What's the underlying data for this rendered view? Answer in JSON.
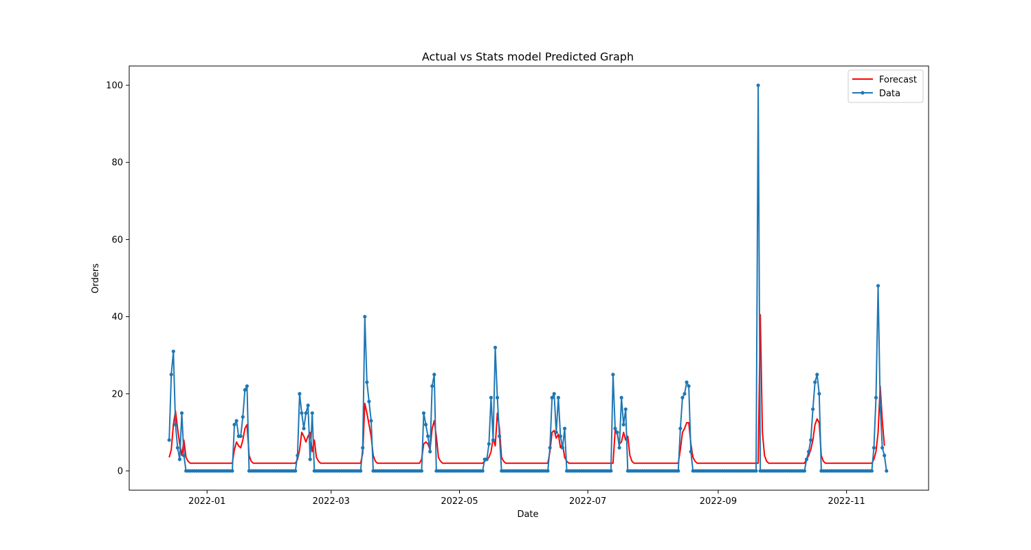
{
  "chart_data": {
    "type": "line",
    "title": "Actual vs Stats model Predicted Graph",
    "xlabel": "Date",
    "ylabel": "Orders",
    "xlim": [
      "2021-11-25",
      "2022-12-10"
    ],
    "ylim": [
      -5,
      105
    ],
    "x_ticks": [
      "2022-01-01",
      "2022-03-01",
      "2022-05-01",
      "2022-07-01",
      "2022-09-01",
      "2022-11-01"
    ],
    "x_tick_labels": [
      "2022-01",
      "2022-03",
      "2022-05",
      "2022-07",
      "2022-09",
      "2022-11"
    ],
    "y_ticks": [
      0,
      20,
      40,
      60,
      80,
      100
    ],
    "y_tick_labels": [
      "0",
      "20",
      "40",
      "60",
      "80",
      "100"
    ],
    "grid": false,
    "legend_position": "upper right",
    "legend": [
      "Forecast",
      "Data"
    ],
    "series": [
      {
        "name": "Forecast",
        "color": "#ff0000",
        "marker": "none",
        "points": [
          [
            "2021-12-14",
            3.5
          ],
          [
            "2021-12-15",
            5.5
          ],
          [
            "2021-12-16",
            12.0
          ],
          [
            "2021-12-17",
            15.5
          ],
          [
            "2021-12-18",
            11.0
          ],
          [
            "2021-12-19",
            7.0
          ],
          [
            "2021-12-20",
            4.0
          ],
          [
            "2021-12-21",
            8.0
          ],
          [
            "2021-12-22",
            3.5
          ],
          [
            "2021-12-23",
            2.5
          ],
          [
            "2021-12-24",
            2.0
          ],
          [
            "2022-01-13",
            2.0
          ],
          [
            "2022-01-14",
            5.5
          ],
          [
            "2022-01-15",
            7.5
          ],
          [
            "2022-01-16",
            6.5
          ],
          [
            "2022-01-17",
            6.0
          ],
          [
            "2022-01-18",
            8.0
          ],
          [
            "2022-01-19",
            11.0
          ],
          [
            "2022-01-20",
            12.0
          ],
          [
            "2022-01-21",
            4.0
          ],
          [
            "2022-01-22",
            2.5
          ],
          [
            "2022-01-23",
            2.0
          ],
          [
            "2022-02-12",
            2.0
          ],
          [
            "2022-02-13",
            3.0
          ],
          [
            "2022-02-14",
            5.5
          ],
          [
            "2022-02-15",
            10.0
          ],
          [
            "2022-02-16",
            9.0
          ],
          [
            "2022-02-17",
            7.5
          ],
          [
            "2022-02-18",
            9.0
          ],
          [
            "2022-02-19",
            10.0
          ],
          [
            "2022-02-20",
            5.0
          ],
          [
            "2022-02-21",
            8.0
          ],
          [
            "2022-02-22",
            3.5
          ],
          [
            "2022-02-23",
            2.5
          ],
          [
            "2022-02-24",
            2.0
          ],
          [
            "2022-03-15",
            2.0
          ],
          [
            "2022-03-16",
            4.5
          ],
          [
            "2022-03-17",
            17.5
          ],
          [
            "2022-03-18",
            15.0
          ],
          [
            "2022-03-19",
            12.0
          ],
          [
            "2022-03-20",
            9.0
          ],
          [
            "2022-03-21",
            4.0
          ],
          [
            "2022-03-22",
            2.5
          ],
          [
            "2022-03-23",
            2.0
          ],
          [
            "2022-04-12",
            2.0
          ],
          [
            "2022-04-13",
            3.0
          ],
          [
            "2022-04-14",
            7.0
          ],
          [
            "2022-04-15",
            7.5
          ],
          [
            "2022-04-16",
            7.0
          ],
          [
            "2022-04-17",
            5.5
          ],
          [
            "2022-04-18",
            11.0
          ],
          [
            "2022-04-19",
            13.0
          ],
          [
            "2022-04-20",
            9.0
          ],
          [
            "2022-04-21",
            3.5
          ],
          [
            "2022-04-22",
            2.5
          ],
          [
            "2022-04-23",
            2.0
          ],
          [
            "2022-05-12",
            2.0
          ],
          [
            "2022-05-13",
            2.5
          ],
          [
            "2022-05-14",
            3.0
          ],
          [
            "2022-05-15",
            3.5
          ],
          [
            "2022-05-16",
            5.0
          ],
          [
            "2022-05-17",
            8.5
          ],
          [
            "2022-05-18",
            6.5
          ],
          [
            "2022-05-19",
            15.0
          ],
          [
            "2022-05-20",
            11.0
          ],
          [
            "2022-05-21",
            3.5
          ],
          [
            "2022-05-22",
            2.5
          ],
          [
            "2022-05-23",
            2.0
          ],
          [
            "2022-06-12",
            2.0
          ],
          [
            "2022-06-13",
            5.0
          ],
          [
            "2022-06-14",
            10.0
          ],
          [
            "2022-06-15",
            10.5
          ],
          [
            "2022-06-16",
            8.5
          ],
          [
            "2022-06-17",
            9.5
          ],
          [
            "2022-06-18",
            6.0
          ],
          [
            "2022-06-19",
            7.0
          ],
          [
            "2022-06-20",
            3.5
          ],
          [
            "2022-06-21",
            2.5
          ],
          [
            "2022-06-22",
            2.0
          ],
          [
            "2022-07-13",
            2.0
          ],
          [
            "2022-07-14",
            10.5
          ],
          [
            "2022-07-15",
            9.5
          ],
          [
            "2022-07-16",
            7.0
          ],
          [
            "2022-07-17",
            7.5
          ],
          [
            "2022-07-18",
            10.0
          ],
          [
            "2022-07-19",
            8.0
          ],
          [
            "2022-07-20",
            9.0
          ],
          [
            "2022-07-21",
            4.0
          ],
          [
            "2022-07-22",
            2.5
          ],
          [
            "2022-07-23",
            2.0
          ],
          [
            "2022-08-13",
            2.0
          ],
          [
            "2022-08-14",
            5.5
          ],
          [
            "2022-08-15",
            10.0
          ],
          [
            "2022-08-16",
            11.0
          ],
          [
            "2022-08-17",
            12.5
          ],
          [
            "2022-08-18",
            12.5
          ],
          [
            "2022-08-19",
            7.0
          ],
          [
            "2022-08-20",
            3.5
          ],
          [
            "2022-08-21",
            2.5
          ],
          [
            "2022-08-22",
            2.0
          ],
          [
            "2022-09-20",
            2.0
          ],
          [
            "2022-09-21",
            40.5
          ],
          [
            "2022-09-22",
            10.0
          ],
          [
            "2022-09-23",
            4.0
          ],
          [
            "2022-09-24",
            2.5
          ],
          [
            "2022-09-25",
            2.0
          ],
          [
            "2022-10-12",
            2.0
          ],
          [
            "2022-10-13",
            3.0
          ],
          [
            "2022-10-14",
            4.0
          ],
          [
            "2022-10-15",
            5.5
          ],
          [
            "2022-10-16",
            8.0
          ],
          [
            "2022-10-17",
            12.0
          ],
          [
            "2022-10-18",
            13.5
          ],
          [
            "2022-10-19",
            12.5
          ],
          [
            "2022-10-20",
            4.0
          ],
          [
            "2022-10-21",
            2.5
          ],
          [
            "2022-10-22",
            2.0
          ],
          [
            "2022-11-13",
            2.0
          ],
          [
            "2022-11-14",
            3.0
          ],
          [
            "2022-11-15",
            5.0
          ],
          [
            "2022-11-16",
            10.0
          ],
          [
            "2022-11-17",
            22.0
          ],
          [
            "2022-11-18",
            13.0
          ],
          [
            "2022-11-19",
            6.5
          ]
        ]
      },
      {
        "name": "Data",
        "color": "#1f77b4",
        "marker": "circle",
        "baseline_zero_note": "All dates between the listed active-day points have value 0",
        "start": "2021-12-14",
        "end": "2022-11-20",
        "nonzero_points": [
          [
            "2021-12-14",
            8
          ],
          [
            "2021-12-15",
            25
          ],
          [
            "2021-12-16",
            31
          ],
          [
            "2021-12-17",
            12
          ],
          [
            "2021-12-18",
            6
          ],
          [
            "2021-12-19",
            3
          ],
          [
            "2021-12-20",
            15
          ],
          [
            "2021-12-21",
            4
          ],
          [
            "2022-01-14",
            12
          ],
          [
            "2022-01-15",
            13
          ],
          [
            "2022-01-16",
            9
          ],
          [
            "2022-01-17",
            9
          ],
          [
            "2022-01-18",
            14
          ],
          [
            "2022-01-19",
            21
          ],
          [
            "2022-01-20",
            22
          ],
          [
            "2022-02-13",
            4
          ],
          [
            "2022-02-14",
            20
          ],
          [
            "2022-02-15",
            15
          ],
          [
            "2022-02-16",
            11
          ],
          [
            "2022-02-17",
            15
          ],
          [
            "2022-02-18",
            17
          ],
          [
            "2022-02-19",
            3
          ],
          [
            "2022-02-20",
            15
          ],
          [
            "2022-03-16",
            6
          ],
          [
            "2022-03-17",
            40
          ],
          [
            "2022-03-18",
            23
          ],
          [
            "2022-03-19",
            18
          ],
          [
            "2022-03-20",
            13
          ],
          [
            "2022-04-14",
            15
          ],
          [
            "2022-04-15",
            12
          ],
          [
            "2022-04-16",
            9
          ],
          [
            "2022-04-17",
            5
          ],
          [
            "2022-04-18",
            22
          ],
          [
            "2022-04-19",
            25
          ],
          [
            "2022-05-13",
            3
          ],
          [
            "2022-05-14",
            3
          ],
          [
            "2022-05-15",
            7
          ],
          [
            "2022-05-16",
            19
          ],
          [
            "2022-05-17",
            8
          ],
          [
            "2022-05-18",
            32
          ],
          [
            "2022-05-19",
            19
          ],
          [
            "2022-05-20",
            9
          ],
          [
            "2022-06-13",
            6
          ],
          [
            "2022-06-14",
            19
          ],
          [
            "2022-06-15",
            20
          ],
          [
            "2022-06-16",
            10
          ],
          [
            "2022-06-17",
            19
          ],
          [
            "2022-06-18",
            9
          ],
          [
            "2022-06-19",
            6
          ],
          [
            "2022-06-20",
            11
          ],
          [
            "2022-07-13",
            25
          ],
          [
            "2022-07-14",
            11
          ],
          [
            "2022-07-15",
            10
          ],
          [
            "2022-07-16",
            6
          ],
          [
            "2022-07-17",
            19
          ],
          [
            "2022-07-18",
            12
          ],
          [
            "2022-07-19",
            16
          ],
          [
            "2022-08-14",
            11
          ],
          [
            "2022-08-15",
            19
          ],
          [
            "2022-08-16",
            20
          ],
          [
            "2022-08-17",
            23
          ],
          [
            "2022-08-18",
            22
          ],
          [
            "2022-08-19",
            5
          ],
          [
            "2022-09-20",
            100
          ],
          [
            "2022-10-13",
            3
          ],
          [
            "2022-10-14",
            5
          ],
          [
            "2022-10-15",
            8
          ],
          [
            "2022-10-16",
            16
          ],
          [
            "2022-10-17",
            23
          ],
          [
            "2022-10-18",
            25
          ],
          [
            "2022-10-19",
            20
          ],
          [
            "2022-11-14",
            6
          ],
          [
            "2022-11-15",
            19
          ],
          [
            "2022-11-16",
            48
          ],
          [
            "2022-11-17",
            17
          ],
          [
            "2022-11-18",
            6
          ],
          [
            "2022-11-19",
            4
          ]
        ]
      }
    ]
  }
}
